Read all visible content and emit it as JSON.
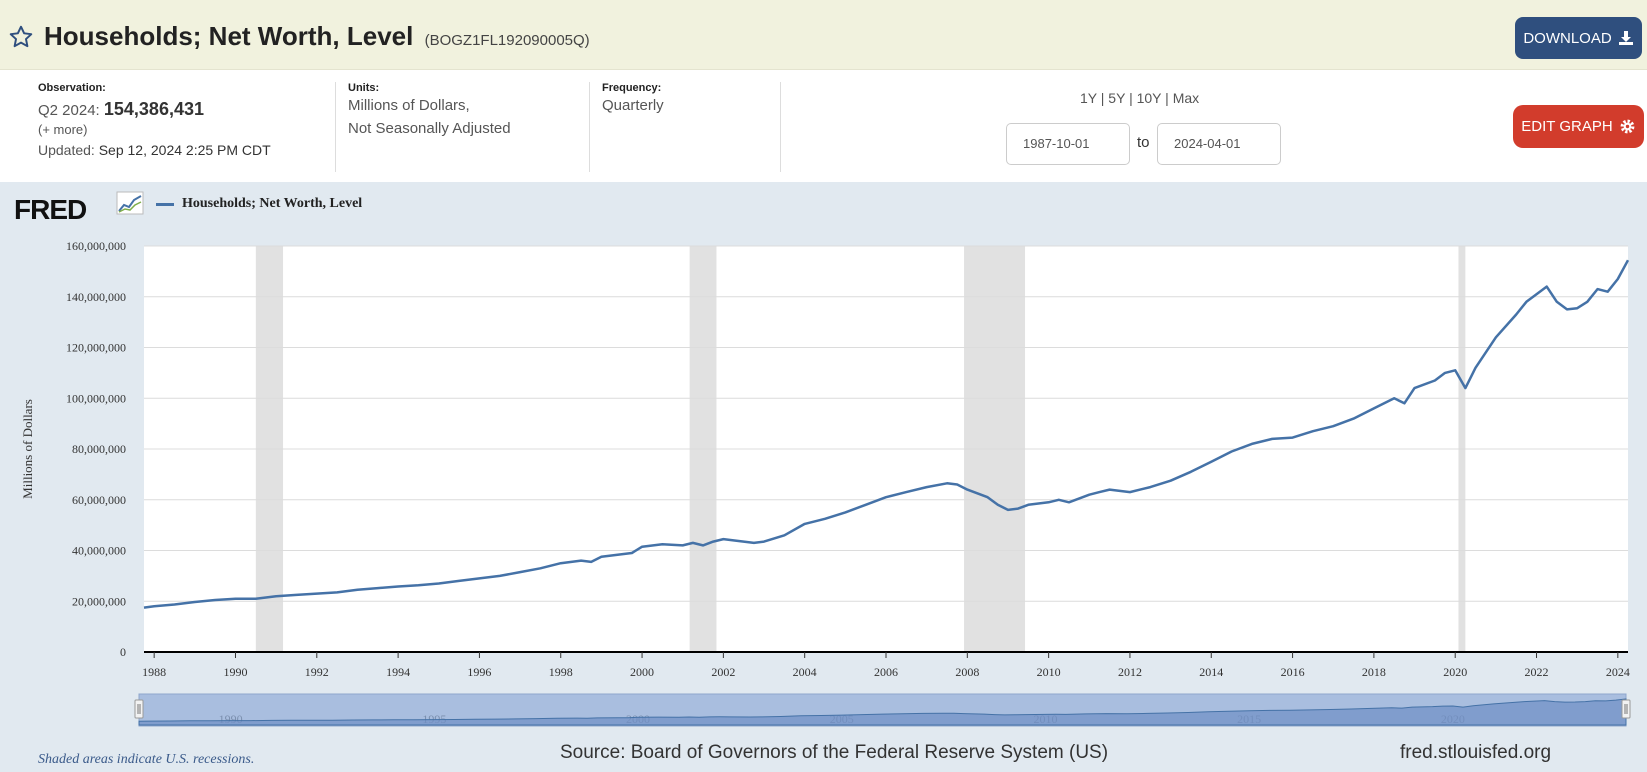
{
  "header": {
    "title": "Households; Net Worth, Level",
    "series_id": "(BOGZ1FL192090005Q)",
    "download_label": "DOWNLOAD"
  },
  "meta": {
    "observation_label": "Observation:",
    "observation_period": "Q2 2024:",
    "observation_value": "154,386,431",
    "more_link": "(+ more)",
    "updated_label": "Updated:",
    "updated_value": "Sep 12, 2024 2:25 PM CDT",
    "units_label": "Units:",
    "units_line1": "Millions of Dollars,",
    "units_line2": "Not Seasonally Adjusted",
    "frequency_label": "Frequency:",
    "frequency_value": "Quarterly",
    "range_1y": "1Y",
    "range_5y": "5Y",
    "range_10y": "10Y",
    "range_max": "Max",
    "range_sep": "|",
    "date_from": "1987-10-01",
    "to_label": "to",
    "date_to": "2024-04-01",
    "edit_label": "EDIT GRAPH"
  },
  "footer": {
    "logo_text": "FRED",
    "recession_note": "Shaded areas indicate U.S. recessions.",
    "source": "Source: Board of Governors of the Federal Reserve System (US)",
    "site": "fred.stlouisfed.org"
  },
  "colors": {
    "series": "#4572a7",
    "recession": "#e1e1e1",
    "download_bg": "#2f4f7e",
    "edit_bg": "#d23c2c",
    "header_bg": "#f1f2de",
    "chart_bg": "#e1e9f0"
  },
  "chart_data": {
    "type": "line",
    "title": "Households; Net Worth, Level",
    "xlabel": "",
    "ylabel": "Millions of Dollars",
    "xlim": [
      1987.75,
      2024.25
    ],
    "ylim": [
      0,
      160000000
    ],
    "y_ticks": [
      0,
      20000000,
      40000000,
      60000000,
      80000000,
      100000000,
      120000000,
      140000000,
      160000000
    ],
    "y_tick_labels": [
      "0",
      "20,000,000",
      "40,000,000",
      "60,000,000",
      "80,000,000",
      "100,000,000",
      "120,000,000",
      "140,000,000",
      "160,000,000"
    ],
    "x_ticks": [
      1988,
      1990,
      1992,
      1994,
      1996,
      1998,
      2000,
      2002,
      2004,
      2006,
      2008,
      2010,
      2012,
      2014,
      2016,
      2018,
      2020,
      2022,
      2024
    ],
    "x_tick_labels": [
      "1988",
      "1990",
      "1992",
      "1994",
      "1996",
      "1998",
      "2000",
      "2002",
      "2004",
      "2006",
      "2008",
      "2010",
      "2012",
      "2014",
      "2016",
      "2018",
      "2020",
      "2022",
      "2024"
    ],
    "navigator_labels": [
      "1990",
      "1995",
      "2000",
      "2005",
      "2010",
      "2015",
      "2020"
    ],
    "navigator_ticks": [
      1990,
      1995,
      2000,
      2005,
      2010,
      2015,
      2020
    ],
    "recessions": [
      [
        1990.5,
        1991.17
      ],
      [
        2001.17,
        2001.83
      ],
      [
        2007.92,
        2009.42
      ],
      [
        2020.08,
        2020.25
      ]
    ],
    "series": [
      {
        "name": "Households; Net Worth, Level",
        "x": [
          1987.75,
          1988,
          1988.5,
          1989,
          1989.5,
          1990,
          1990.5,
          1991,
          1991.5,
          1992,
          1992.5,
          1993,
          1993.5,
          1994,
          1994.5,
          1995,
          1995.5,
          1996,
          1996.5,
          1997,
          1997.5,
          1998,
          1998.5,
          1998.75,
          1999,
          1999.5,
          1999.75,
          2000,
          2000.5,
          2001,
          2001.25,
          2001.5,
          2001.75,
          2002,
          2002.25,
          2002.75,
          2003,
          2003.5,
          2004,
          2004.5,
          2005,
          2005.5,
          2006,
          2006.5,
          2007,
          2007.5,
          2007.75,
          2008,
          2008.5,
          2008.75,
          2009,
          2009.25,
          2009.5,
          2010,
          2010.25,
          2010.5,
          2011,
          2011.25,
          2011.5,
          2012,
          2012.5,
          2013,
          2013.5,
          2014,
          2014.5,
          2015,
          2015.5,
          2016,
          2016.5,
          2017,
          2017.5,
          2018,
          2018.5,
          2018.75,
          2019,
          2019.5,
          2019.75,
          2020,
          2020.25,
          2020.5,
          2021,
          2021.5,
          2021.75,
          2022,
          2022.25,
          2022.5,
          2022.75,
          2023,
          2023.25,
          2023.5,
          2023.75,
          2024,
          2024.25
        ],
        "values": [
          17500000,
          18000000,
          18700000,
          19700000,
          20500000,
          21000000,
          21000000,
          22000000,
          22500000,
          23000000,
          23500000,
          24500000,
          25200000,
          25800000,
          26300000,
          27000000,
          28000000,
          29000000,
          30000000,
          31500000,
          33000000,
          35000000,
          36000000,
          35500000,
          37500000,
          38500000,
          39000000,
          41500000,
          42500000,
          42000000,
          43000000,
          42000000,
          43500000,
          44500000,
          44000000,
          43000000,
          43500000,
          46000000,
          50500000,
          52500000,
          55000000,
          58000000,
          61000000,
          63000000,
          65000000,
          66500000,
          66000000,
          64000000,
          61000000,
          58000000,
          56000000,
          56500000,
          58000000,
          59000000,
          60000000,
          59000000,
          62000000,
          63000000,
          64000000,
          63000000,
          65000000,
          67500000,
          71000000,
          75000000,
          79000000,
          82000000,
          84000000,
          84500000,
          87000000,
          89000000,
          92000000,
          96000000,
          100000000,
          98000000,
          104000000,
          107000000,
          110000000,
          111000000,
          104000000,
          112000000,
          124000000,
          133000000,
          138000000,
          141000000,
          144000000,
          138000000,
          135000000,
          135500000,
          138000000,
          143000000,
          142000000,
          147000000,
          154400000
        ]
      }
    ]
  }
}
